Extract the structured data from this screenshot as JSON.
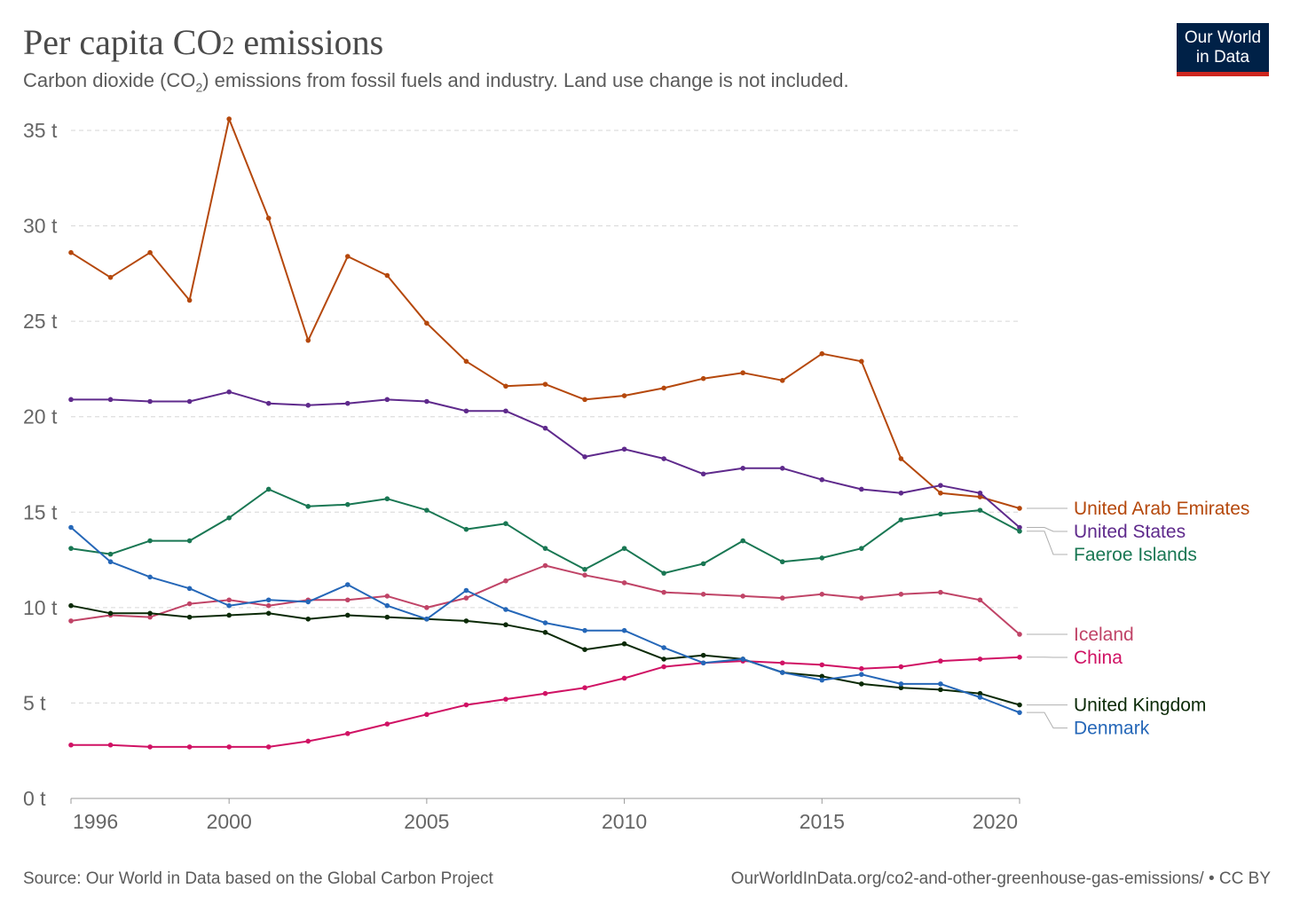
{
  "header": {
    "title_main": "Per capita CO",
    "title_sub": "2",
    "title_end": " emissions",
    "subtitle_a": "Carbon dioxide (CO",
    "subtitle_sub": "2",
    "subtitle_b": ") emissions from fossil fuels and industry. Land use change is not included.",
    "logo_line1": "Our World",
    "logo_line2": "in Data"
  },
  "footer": {
    "source": "Source: Our World in Data based on the Global Carbon Project",
    "url": "OurWorldInData.org/co2-and-other-greenhouse-gas-emissions/ • CC BY"
  },
  "chart_data": {
    "type": "line",
    "x": [
      1996,
      1997,
      1998,
      1999,
      2000,
      2001,
      2002,
      2003,
      2004,
      2005,
      2006,
      2007,
      2008,
      2009,
      2010,
      2011,
      2012,
      2013,
      2014,
      2015,
      2016,
      2017,
      2018,
      2019,
      2020
    ],
    "xlim": [
      1996,
      2020
    ],
    "ylim": [
      0,
      35
    ],
    "x_ticks": [
      1996,
      2000,
      2005,
      2010,
      2015,
      2020
    ],
    "y_ticks": [
      0,
      5,
      10,
      15,
      20,
      25,
      30,
      35
    ],
    "y_tick_labels": [
      "0 t",
      "5 t",
      "10 t",
      "15 t",
      "20 t",
      "25 t",
      "30 t",
      "35 t"
    ],
    "grid": "horizontal dashed",
    "legend": "right, labels at line ends",
    "series": [
      {
        "name": "United Arab Emirates",
        "color": "#b5480c",
        "values": [
          28.6,
          27.3,
          28.6,
          26.1,
          35.6,
          30.4,
          24.0,
          28.4,
          27.4,
          24.9,
          22.9,
          21.6,
          21.7,
          20.9,
          21.1,
          21.5,
          22.0,
          22.3,
          21.9,
          23.3,
          22.9,
          17.8,
          16.0,
          15.8,
          15.2
        ]
      },
      {
        "name": "United States",
        "color": "#5f2a8c",
        "values": [
          20.9,
          20.9,
          20.8,
          20.8,
          21.3,
          20.7,
          20.6,
          20.7,
          20.9,
          20.8,
          20.3,
          20.3,
          19.4,
          17.9,
          18.3,
          17.8,
          17.0,
          17.3,
          17.3,
          16.7,
          16.2,
          16.0,
          16.4,
          16.0,
          14.2
        ]
      },
      {
        "name": "Faeroe Islands",
        "color": "#197753",
        "values": [
          13.1,
          12.8,
          13.5,
          13.5,
          14.7,
          16.2,
          15.3,
          15.4,
          15.7,
          15.1,
          14.1,
          14.4,
          13.1,
          12.0,
          13.1,
          11.8,
          12.3,
          13.5,
          12.4,
          12.6,
          13.1,
          14.6,
          14.9,
          15.1,
          14.0
        ]
      },
      {
        "name": "Iceland",
        "color": "#c04467",
        "values": [
          9.3,
          9.6,
          9.5,
          10.2,
          10.4,
          10.1,
          10.4,
          10.4,
          10.6,
          10.0,
          10.5,
          11.4,
          12.2,
          11.7,
          11.3,
          10.8,
          10.7,
          10.6,
          10.5,
          10.7,
          10.5,
          10.7,
          10.8,
          10.4,
          8.6
        ]
      },
      {
        "name": "China",
        "color": "#d01264",
        "values": [
          2.8,
          2.8,
          2.7,
          2.7,
          2.7,
          2.7,
          3.0,
          3.4,
          3.9,
          4.4,
          4.9,
          5.2,
          5.5,
          5.8,
          6.3,
          6.9,
          7.1,
          7.2,
          7.1,
          7.0,
          6.8,
          6.9,
          7.2,
          7.3,
          7.4
        ]
      },
      {
        "name": "United Kingdom",
        "color": "#0b2a07",
        "values": [
          10.1,
          9.7,
          9.7,
          9.5,
          9.6,
          9.7,
          9.4,
          9.6,
          9.5,
          9.4,
          9.3,
          9.1,
          8.7,
          7.8,
          8.1,
          7.3,
          7.5,
          7.3,
          6.6,
          6.4,
          6.0,
          5.8,
          5.7,
          5.5,
          4.9
        ]
      },
      {
        "name": "Denmark",
        "color": "#2567b8",
        "values": [
          14.2,
          12.4,
          11.6,
          11.0,
          10.1,
          10.4,
          10.3,
          11.2,
          10.1,
          9.4,
          10.9,
          9.9,
          9.2,
          8.8,
          8.8,
          7.9,
          7.1,
          7.3,
          6.6,
          6.2,
          6.5,
          6.0,
          6.0,
          5.3,
          4.5
        ]
      }
    ]
  }
}
